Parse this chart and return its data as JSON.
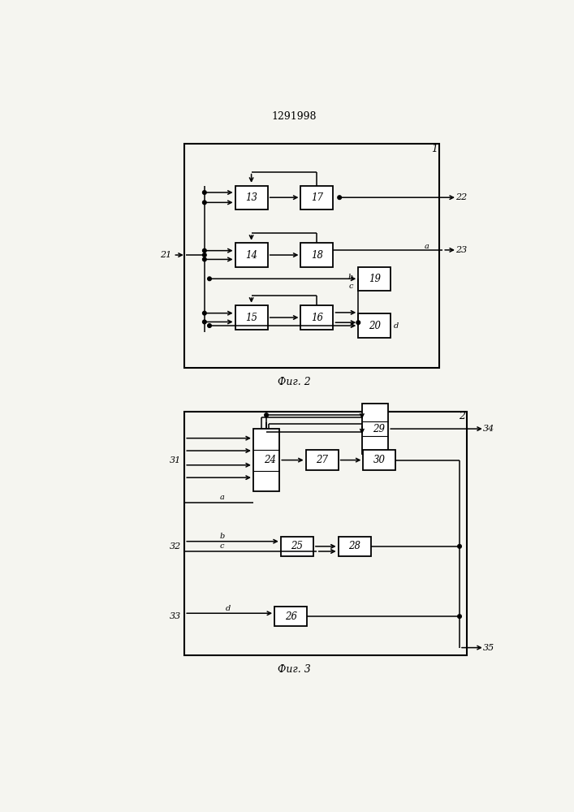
{
  "title": "1291998",
  "fig2_caption": "Фиг. 2",
  "fig3_caption": "Фиг. 3",
  "bg_color": "#f5f5f0"
}
